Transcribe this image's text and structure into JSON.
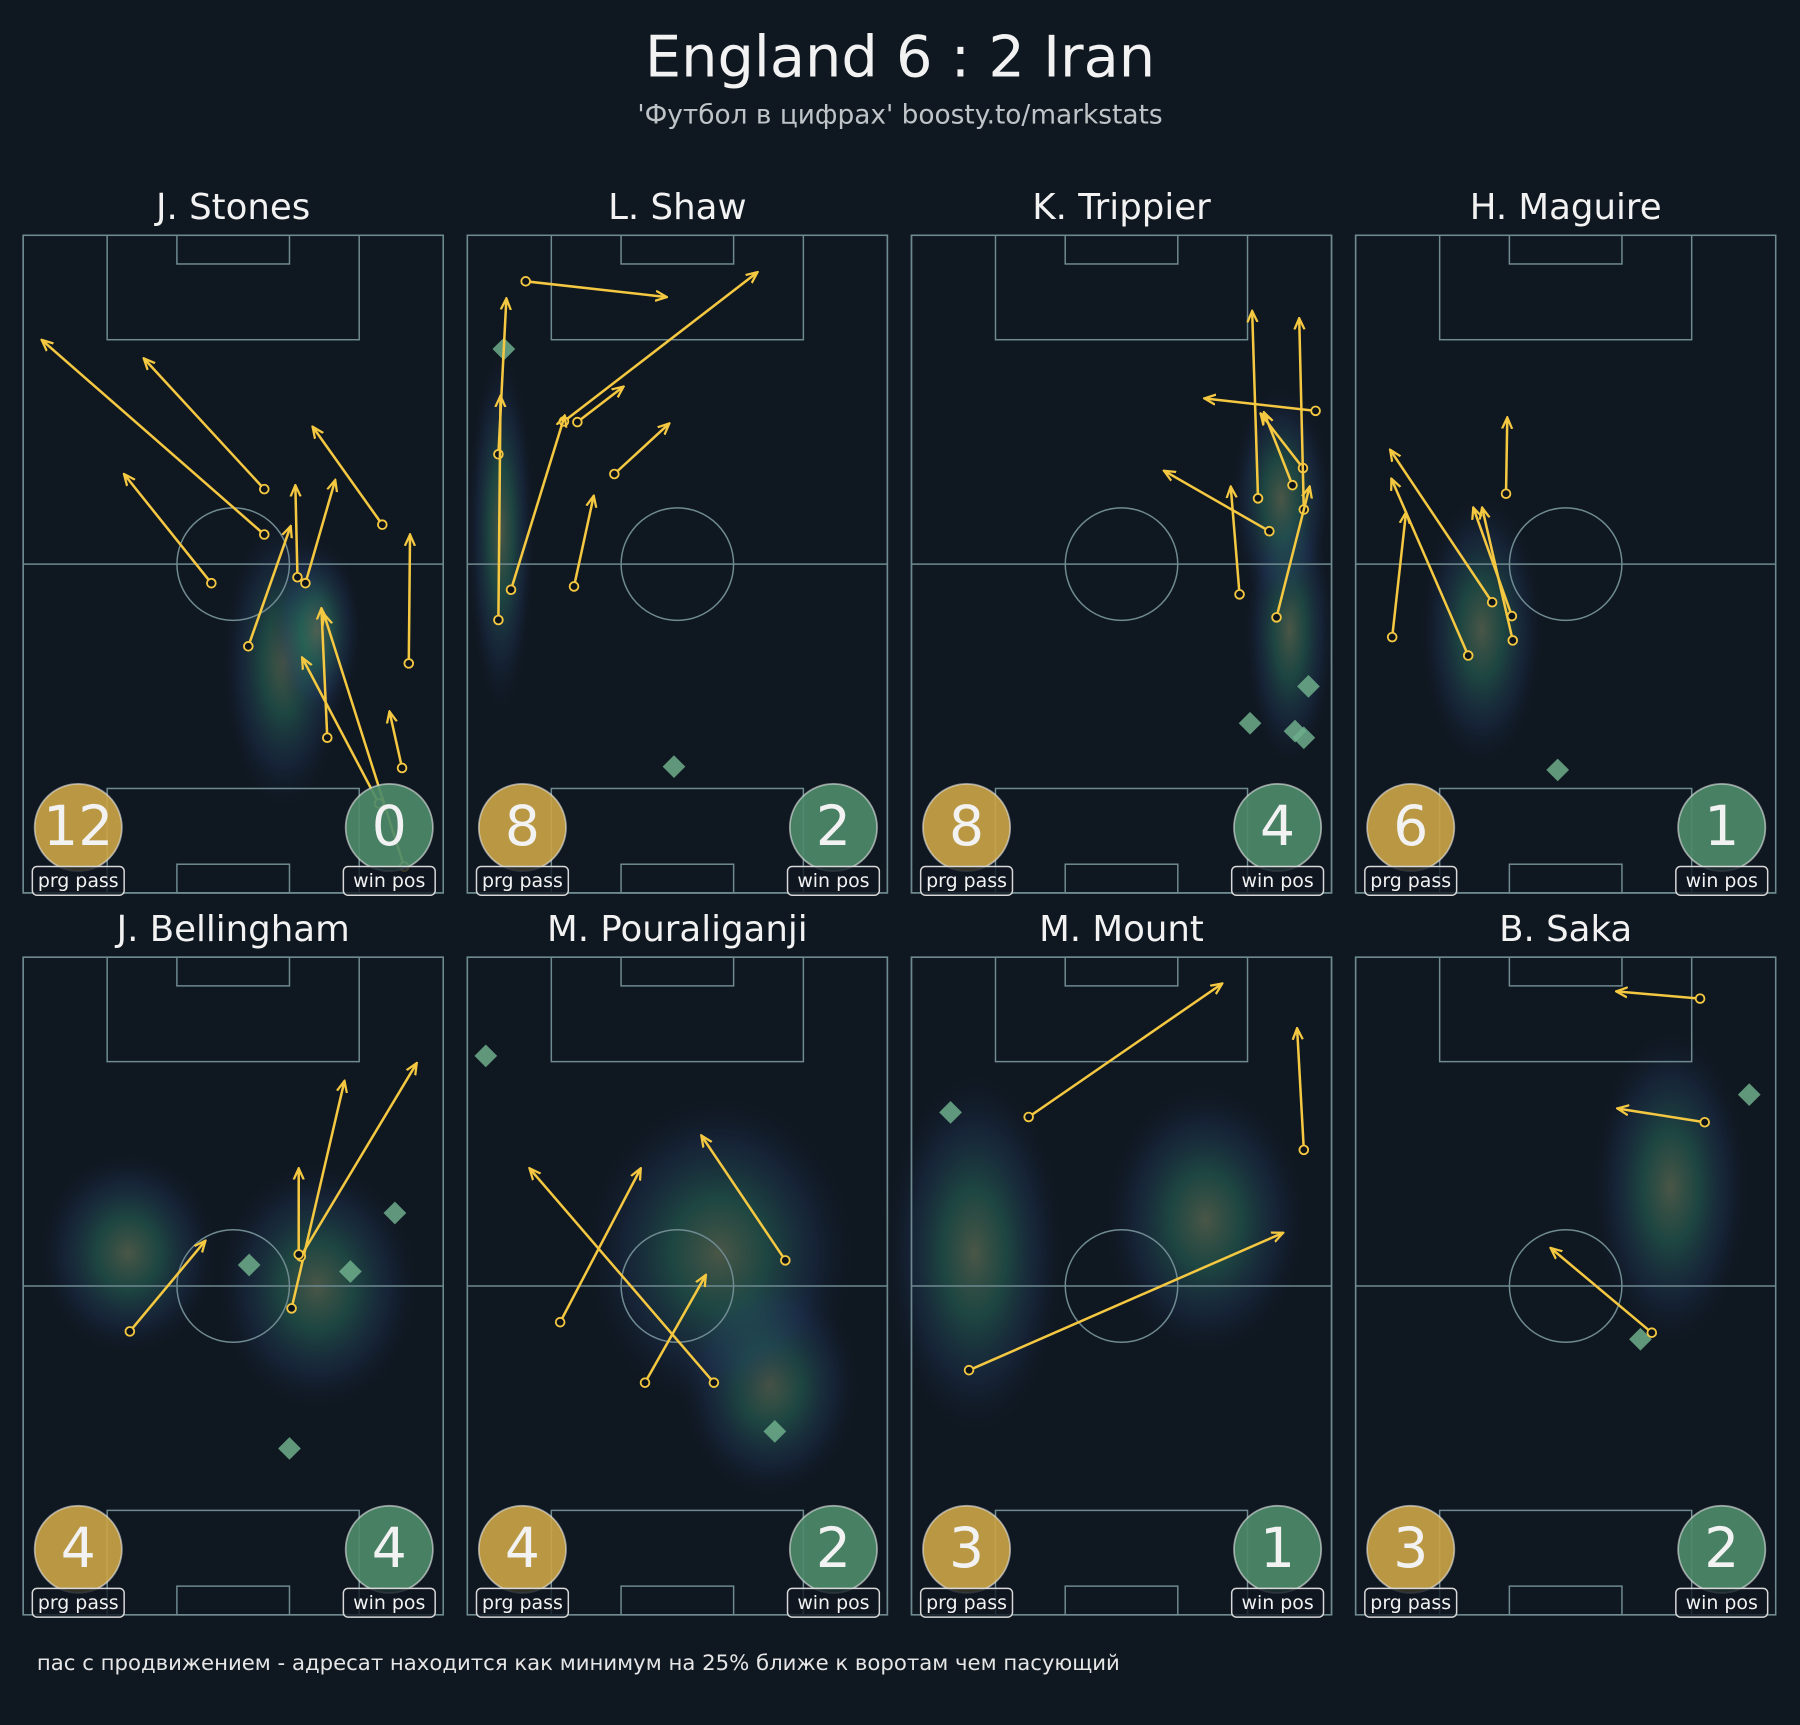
{
  "chart_data": {
    "type": "pass-map",
    "title": "England 6 : 2 Iran",
    "subtitle": "'Футбол в цифрах' boosty.to/markstats",
    "footnote": "пас с продвижением - адресат находится как минимум на 25% ближе к воротам чем пасующий",
    "prg_label": "prg pass",
    "win_label": "win pos",
    "pass_color": "#f5c842",
    "prg_color": "#c9a447",
    "win_color": "#4d8a6a",
    "win_marker_color": "#6fae8c",
    "xlim": [
      0,
      100
    ],
    "ylim": [
      0,
      100
    ],
    "panels": [
      {
        "player": "J. Stones",
        "prg_pass": 12,
        "win_pos": 0,
        "passes": [
          {
            "x": [
              57.4,
              4.4
            ],
            "y": [
              54.5,
              84.1
            ]
          },
          {
            "x": [
              57.4,
              28.7
            ],
            "y": [
              61.4,
              81.3
            ]
          },
          {
            "x": [
              44.8,
              24.0
            ],
            "y": [
              47.1,
              63.7
            ]
          },
          {
            "x": [
              85.5,
              68.9
            ],
            "y": [
              56.0,
              70.9
            ]
          },
          {
            "x": [
              53.6,
              63.7
            ],
            "y": [
              37.5,
              55.8
            ]
          },
          {
            "x": [
              65.3,
              64.8
            ],
            "y": [
              48.0,
              62.0
            ]
          },
          {
            "x": [
              67.2,
              74.3
            ],
            "y": [
              47.1,
              62.8
            ]
          },
          {
            "x": [
              91.8,
              92.1
            ],
            "y": [
              34.9,
              54.5
            ]
          },
          {
            "x": [
              72.4,
              71.0
            ],
            "y": [
              23.6,
              43.3
            ]
          },
          {
            "x": [
              90.2,
              87.2
            ],
            "y": [
              19.0,
              27.6
            ]
          },
          {
            "x": [
              84.7,
              66.4
            ],
            "y": [
              13.6,
              35.8
            ]
          },
          {
            "x": [
              90.7,
              71.6
            ],
            "y": [
              4.0,
              42.4
            ]
          }
        ],
        "win_positions": {
          "x": [],
          "y": []
        }
      },
      {
        "player": "L. Shaw",
        "prg_pass": 8,
        "win_pos": 2,
        "passes": [
          {
            "x": [
              13.9,
              47.5
            ],
            "y": [
              93.0,
              90.6
            ]
          },
          {
            "x": [
              23.0,
              69.1
            ],
            "y": [
              71.7,
              94.4
            ]
          },
          {
            "x": [
              26.2,
              37.2
            ],
            "y": [
              71.6,
              77.0
            ]
          },
          {
            "x": [
              35.0,
              48.1
            ],
            "y": [
              63.7,
              71.4
            ]
          },
          {
            "x": [
              10.4,
              23.2
            ],
            "y": [
              46.1,
              72.6
            ]
          },
          {
            "x": [
              25.4,
              30.1
            ],
            "y": [
              46.6,
              60.4
            ]
          },
          {
            "x": [
              7.4,
              9.3
            ],
            "y": [
              66.7,
              90.4
            ]
          },
          {
            "x": [
              7.4,
              7.9
            ],
            "y": [
              41.5,
              75.6
            ]
          }
        ],
        "win_positions": {
          "x": [
            8.7,
            49.2
          ],
          "y": [
            82.7,
            19.2
          ]
        }
      },
      {
        "player": "K. Trippier",
        "prg_pass": 8,
        "win_pos": 4,
        "passes": [
          {
            "x": [
              96.2,
              69.7
            ],
            "y": [
              73.3,
              75.2
            ]
          },
          {
            "x": [
              85.2,
              60.1
            ],
            "y": [
              55.0,
              64.2
            ]
          },
          {
            "x": [
              82.5,
              81.1
            ],
            "y": [
              60.0,
              88.5
            ]
          },
          {
            "x": [
              78.1,
              76.0
            ],
            "y": [
              45.4,
              61.8
            ]
          },
          {
            "x": [
              93.2,
              83.1
            ],
            "y": [
              64.6,
              72.9
            ]
          },
          {
            "x": [
              90.7,
              83.9
            ],
            "y": [
              62.0,
              73.1
            ]
          },
          {
            "x": [
              93.4,
              92.3
            ],
            "y": [
              58.3,
              87.4
            ]
          },
          {
            "x": [
              86.9,
              94.8
            ],
            "y": [
              41.9,
              61.8
            ]
          }
        ],
        "win_positions": {
          "x": [
            94.5,
            80.6,
            91.3,
            93.4
          ],
          "y": [
            31.4,
            25.8,
            24.6,
            23.6
          ]
        }
      },
      {
        "player": "H. Maguire",
        "prg_pass": 6,
        "win_pos": 1,
        "passes": [
          {
            "x": [
              35.8,
              36.1
            ],
            "y": [
              60.7,
              72.3
            ]
          },
          {
            "x": [
              32.5,
              8.2
            ],
            "y": [
              44.2,
              67.4
            ]
          },
          {
            "x": [
              8.7,
              12.0
            ],
            "y": [
              38.9,
              57.9
            ]
          },
          {
            "x": [
              26.8,
              8.5
            ],
            "y": [
              36.1,
              63.0
            ]
          },
          {
            "x": [
              37.2,
              28.0
            ],
            "y": [
              42.1,
              58.6
            ]
          },
          {
            "x": [
              37.4,
              30.1
            ],
            "y": [
              38.4,
              58.6
            ]
          }
        ],
        "win_positions": {
          "x": [
            48.1
          ],
          "y": [
            18.7
          ]
        }
      },
      {
        "player": "J. Bellingham",
        "prg_pass": 4,
        "win_pos": 4,
        "passes": [
          {
            "x": [
              25.4,
              43.4
            ],
            "y": [
              43.1,
              56.9
            ]
          },
          {
            "x": [
              63.9,
              76.5
            ],
            "y": [
              46.6,
              81.2
            ]
          },
          {
            "x": [
              66.1,
              93.7
            ],
            "y": [
              54.5,
              83.9
            ]
          },
          {
            "x": [
              65.6,
              65.6
            ],
            "y": [
              54.8,
              67.9
            ]
          }
        ],
        "win_positions": {
          "x": [
            53.8,
            77.9,
            88.5,
            63.4
          ],
          "y": [
            53.2,
            52.2,
            61.1,
            25.3
          ]
        }
      },
      {
        "player": "M. Pouraliganji",
        "prg_pass": 4,
        "win_pos": 2,
        "passes": [
          {
            "x": [
              58.7,
              14.8
            ],
            "y": [
              35.3,
              67.9
            ]
          },
          {
            "x": [
              22.1,
              41.3
            ],
            "y": [
              44.5,
              67.9
            ]
          },
          {
            "x": [
              42.3,
              56.8
            ],
            "y": [
              35.3,
              51.7
            ]
          },
          {
            "x": [
              75.7,
              55.7
            ],
            "y": [
              53.9,
              72.9
            ]
          }
        ],
        "win_positions": {
          "x": [
            4.4,
            73.2
          ],
          "y": [
            85.0,
            27.9
          ]
        }
      },
      {
        "player": "M. Mount",
        "prg_pass": 3,
        "win_pos": 1,
        "passes": [
          {
            "x": [
              27.9,
              74.0
            ],
            "y": [
              75.7,
              96.0
            ]
          },
          {
            "x": [
              93.4,
              91.8
            ],
            "y": [
              70.7,
              89.2
            ]
          },
          {
            "x": [
              13.7,
              88.5
            ],
            "y": [
              37.2,
              58.1
            ]
          }
        ],
        "win_positions": {
          "x": [
            9.3
          ],
          "y": [
            76.4
          ]
        }
      },
      {
        "player": "B. Saka",
        "prg_pass": 3,
        "win_pos": 2,
        "passes": [
          {
            "x": [
              82.0,
              62.0
            ],
            "y": [
              93.7,
              94.8
            ]
          },
          {
            "x": [
              83.1,
              62.3
            ],
            "y": [
              74.9,
              77.0
            ]
          },
          {
            "x": [
              70.5,
              46.4
            ],
            "y": [
              42.9,
              55.8
            ]
          }
        ],
        "win_positions": {
          "x": [
            93.7,
            67.8
          ],
          "y": [
            79.1,
            41.9
          ]
        }
      }
    ]
  }
}
